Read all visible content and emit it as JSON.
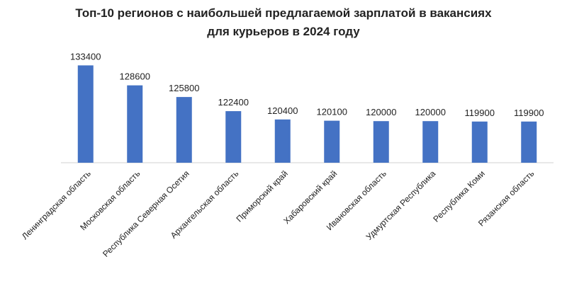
{
  "chart_data": {
    "type": "bar",
    "title": [
      "Топ-10 регионов с наибольшей предлагаемой зарплатой в вакансиях",
      "для курьеров в 2024 году"
    ],
    "categories": [
      "Ленинградская область",
      "Московская область",
      "Республика Северная Осетия",
      "Архангельская область",
      "Приморский край",
      "Хабаровский край",
      "Ивановская область",
      "Удмуртская Республика",
      "Республика Коми",
      "Рязанская область"
    ],
    "values": [
      133400,
      128600,
      125800,
      122400,
      120400,
      120100,
      120000,
      120000,
      119900,
      119900
    ],
    "color": "#4472c4",
    "ylim": [
      110000,
      135000
    ]
  }
}
